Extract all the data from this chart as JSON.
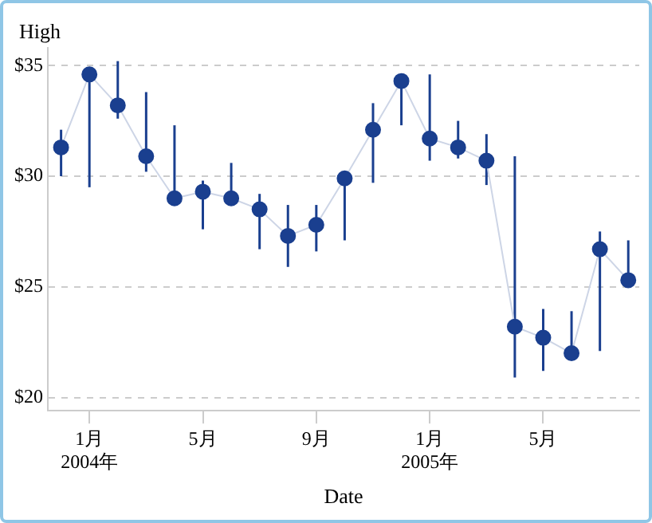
{
  "chart_data": {
    "type": "line",
    "xlabel": "Date",
    "ylabel": "High",
    "x": [
      "2003-12",
      "2004-01",
      "2004-02",
      "2004-03",
      "2004-04",
      "2004-05",
      "2004-06",
      "2004-07",
      "2004-08",
      "2004-09",
      "2004-10",
      "2004-11",
      "2004-12",
      "2005-01",
      "2005-02",
      "2005-03",
      "2005-04",
      "2005-05",
      "2005-06",
      "2005-07",
      "2005-08"
    ],
    "series": [
      {
        "color": "#1a3f8f",
        "values": [
          31.3,
          34.6,
          33.2,
          30.9,
          29.0,
          29.3,
          29.0,
          28.5,
          27.3,
          27.8,
          29.9,
          32.1,
          34.3,
          31.7,
          31.3,
          30.7,
          23.2,
          22.7,
          22.0,
          26.7,
          25.3
        ],
        "errors": [
          [
            30.0,
            32.1
          ],
          [
            29.5,
            34.6
          ],
          [
            32.6,
            35.2
          ],
          [
            30.2,
            33.8
          ],
          [
            29.0,
            32.3
          ],
          [
            27.6,
            29.8
          ],
          [
            28.7,
            30.6
          ],
          [
            26.7,
            29.2
          ],
          [
            25.9,
            28.7
          ],
          [
            26.6,
            28.7
          ],
          [
            27.1,
            29.9
          ],
          [
            29.7,
            33.3
          ],
          [
            32.3,
            34.3
          ],
          [
            30.7,
            34.6
          ],
          [
            30.8,
            32.5
          ],
          [
            29.6,
            31.9
          ],
          [
            20.9,
            30.9
          ],
          [
            21.2,
            24.0
          ],
          [
            22.0,
            23.9
          ],
          [
            22.1,
            27.5
          ],
          [
            25.3,
            27.1
          ]
        ]
      }
    ],
    "xlim": [
      "2003-11-17",
      "2005-08-13"
    ],
    "xticks": [
      {
        "value": "2004-01",
        "label": "1月\n2004年"
      },
      {
        "value": "2004-05",
        "label": "5月"
      },
      {
        "value": "2004-09",
        "label": "9月"
      },
      {
        "value": "2005-01",
        "label": "1月\n2005年"
      },
      {
        "value": "2005-05",
        "label": "5月"
      }
    ],
    "ylim": [
      19.4,
      35.8
    ],
    "yticks": [
      {
        "value": 20,
        "label": "$20"
      },
      {
        "value": 25,
        "label": "$25"
      },
      {
        "value": 30,
        "label": "$30"
      },
      {
        "value": 35,
        "label": "$35"
      }
    ],
    "grid": "y",
    "marker": "circle",
    "line_style": "solid",
    "legend": false
  }
}
